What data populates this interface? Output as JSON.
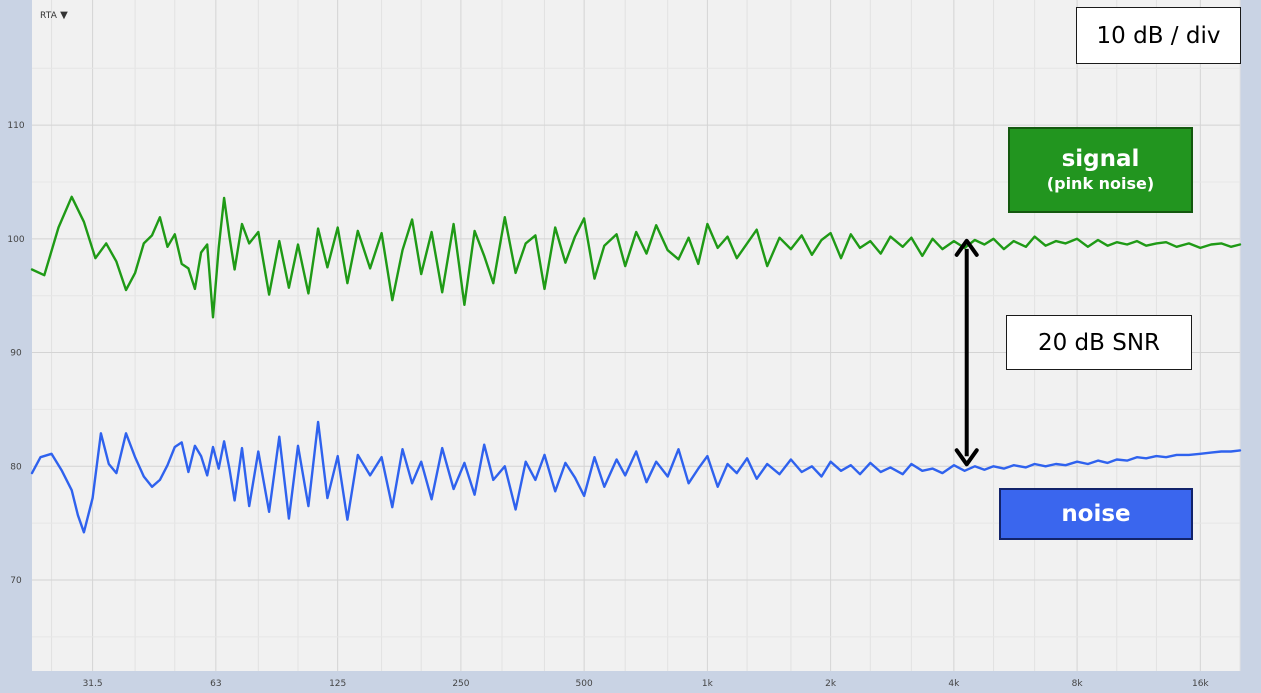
{
  "chart_data": {
    "type": "line",
    "rta_label": "RTA",
    "x_scale": "log",
    "x_unit": "Hz",
    "xlim": [
      22.4,
      20000
    ],
    "ylim": [
      62,
      121
    ],
    "grid": true,
    "x_ticks": [
      {
        "value": 31.5,
        "label": "31.5"
      },
      {
        "value": 63,
        "label": "63"
      },
      {
        "value": 125,
        "label": "125"
      },
      {
        "value": 250,
        "label": "250"
      },
      {
        "value": 500,
        "label": "500"
      },
      {
        "value": 1000,
        "label": "1k"
      },
      {
        "value": 2000,
        "label": "2k"
      },
      {
        "value": 4000,
        "label": "4k"
      },
      {
        "value": 8000,
        "label": "8k"
      },
      {
        "value": 16000,
        "label": "16k"
      }
    ],
    "y_ticks": [
      {
        "value": 110,
        "label": "110"
      },
      {
        "value": 100,
        "label": "100"
      },
      {
        "value": 90,
        "label": "90"
      },
      {
        "value": 80,
        "label": "80"
      },
      {
        "value": 70,
        "label": "70"
      }
    ],
    "series": [
      {
        "name": "signal (pink noise)",
        "color": "#1f9a16",
        "x": [
          22.4,
          24,
          26,
          28,
          30,
          32,
          34,
          36,
          38,
          40,
          42,
          44,
          46,
          48,
          50,
          52,
          54,
          56,
          58,
          60,
          62,
          64,
          66,
          68,
          70,
          73,
          76,
          80,
          85,
          90,
          95,
          100,
          106,
          112,
          118,
          125,
          132,
          140,
          150,
          160,
          170,
          180,
          190,
          200,
          212,
          225,
          240,
          255,
          270,
          285,
          300,
          320,
          340,
          360,
          380,
          400,
          425,
          450,
          475,
          500,
          530,
          560,
          600,
          630,
          670,
          710,
          750,
          800,
          850,
          900,
          950,
          1000,
          1060,
          1120,
          1180,
          1250,
          1320,
          1400,
          1500,
          1600,
          1700,
          1800,
          1900,
          2000,
          2120,
          2240,
          2360,
          2500,
          2650,
          2800,
          3000,
          3150,
          3350,
          3550,
          3750,
          4000,
          4250,
          4500,
          4750,
          5000,
          5300,
          5600,
          6000,
          6300,
          6700,
          7100,
          7500,
          8000,
          8500,
          9000,
          9500,
          10000,
          10600,
          11200,
          11800,
          12500,
          13200,
          14000,
          15000,
          16000,
          17000,
          18000,
          19000,
          20000
        ],
        "y": [
          97.3,
          96.8,
          101.0,
          103.7,
          101.5,
          98.3,
          99.6,
          98.0,
          95.5,
          97.0,
          99.6,
          100.3,
          101.9,
          99.3,
          100.4,
          97.8,
          97.4,
          95.6,
          98.8,
          99.5,
          93.1,
          99.2,
          103.6,
          100.2,
          97.3,
          101.3,
          99.6,
          100.6,
          95.1,
          99.8,
          95.7,
          99.5,
          95.2,
          100.9,
          97.5,
          101.0,
          96.1,
          100.7,
          97.4,
          100.5,
          94.6,
          99.0,
          101.7,
          96.9,
          100.6,
          95.3,
          101.3,
          94.2,
          100.7,
          98.5,
          96.1,
          101.9,
          97.0,
          99.6,
          100.3,
          95.6,
          101.0,
          97.9,
          100.2,
          101.8,
          96.5,
          99.4,
          100.4,
          97.6,
          100.6,
          98.7,
          101.2,
          99.0,
          98.2,
          100.1,
          97.8,
          101.3,
          99.2,
          100.2,
          98.3,
          99.6,
          100.8,
          97.6,
          100.1,
          99.1,
          100.3,
          98.6,
          99.9,
          100.5,
          98.3,
          100.4,
          99.2,
          99.8,
          98.7,
          100.2,
          99.3,
          100.1,
          98.5,
          100.0,
          99.1,
          99.8,
          99.2,
          99.9,
          99.5,
          100.0,
          99.1,
          99.8,
          99.3,
          100.2,
          99.4,
          99.8,
          99.6,
          100.0,
          99.3,
          99.9,
          99.4,
          99.7,
          99.5,
          99.8,
          99.4,
          99.6,
          99.7,
          99.3,
          99.6,
          99.2,
          99.5,
          99.6,
          99.3,
          99.5
        ]
      },
      {
        "name": "noise",
        "color": "#2f62ee",
        "x": [
          22.4,
          23.5,
          25,
          26.5,
          28,
          29,
          30,
          31.5,
          33,
          34.5,
          36,
          38,
          40,
          42,
          44,
          46,
          48,
          50,
          52,
          54,
          56,
          58,
          60,
          62,
          64,
          66,
          68,
          70,
          73,
          76,
          80,
          85,
          90,
          95,
          100,
          106,
          112,
          118,
          125,
          132,
          140,
          150,
          160,
          170,
          180,
          190,
          200,
          212,
          225,
          240,
          255,
          270,
          285,
          300,
          320,
          340,
          360,
          380,
          400,
          425,
          450,
          475,
          500,
          530,
          560,
          600,
          630,
          670,
          710,
          750,
          800,
          850,
          900,
          950,
          1000,
          1060,
          1120,
          1180,
          1250,
          1320,
          1400,
          1500,
          1600,
          1700,
          1800,
          1900,
          2000,
          2120,
          2240,
          2360,
          2500,
          2650,
          2800,
          3000,
          3150,
          3350,
          3550,
          3750,
          4000,
          4250,
          4500,
          4750,
          5000,
          5300,
          5600,
          6000,
          6300,
          6700,
          7100,
          7500,
          8000,
          8500,
          9000,
          9500,
          10000,
          10600,
          11200,
          11800,
          12500,
          13200,
          14000,
          15000,
          16000,
          17000,
          18000,
          19000,
          20000
        ],
        "y": [
          79.4,
          80.8,
          81.1,
          79.6,
          77.9,
          75.7,
          74.2,
          77.2,
          82.9,
          80.2,
          79.4,
          82.9,
          80.8,
          79.1,
          78.2,
          78.8,
          80.1,
          81.7,
          82.1,
          79.5,
          81.8,
          80.9,
          79.2,
          81.7,
          79.8,
          82.2,
          79.8,
          77.0,
          81.6,
          76.5,
          81.3,
          76.0,
          82.6,
          75.4,
          81.8,
          76.5,
          83.9,
          77.2,
          80.9,
          75.3,
          81.0,
          79.2,
          80.8,
          76.4,
          81.5,
          78.5,
          80.4,
          77.1,
          81.6,
          78.0,
          80.3,
          77.5,
          81.9,
          78.8,
          80.0,
          76.2,
          80.4,
          78.8,
          81.0,
          77.8,
          80.3,
          79.0,
          77.4,
          80.8,
          78.2,
          80.6,
          79.2,
          81.3,
          78.6,
          80.4,
          79.1,
          81.5,
          78.5,
          79.8,
          80.9,
          78.2,
          80.2,
          79.4,
          80.7,
          78.9,
          80.2,
          79.3,
          80.6,
          79.5,
          80.0,
          79.1,
          80.4,
          79.6,
          80.1,
          79.3,
          80.3,
          79.5,
          79.9,
          79.3,
          80.2,
          79.6,
          79.8,
          79.4,
          80.1,
          79.6,
          80.0,
          79.7,
          80.0,
          79.8,
          80.1,
          79.9,
          80.2,
          80.0,
          80.2,
          80.1,
          80.4,
          80.2,
          80.5,
          80.3,
          80.6,
          80.5,
          80.8,
          80.7,
          80.9,
          80.8,
          81.0,
          81.0,
          81.1,
          81.2,
          81.3,
          81.3,
          81.4
        ]
      }
    ]
  },
  "annotations": {
    "scale_label": "10 dB / div",
    "signal_label_line1": "signal",
    "signal_label_line2": "(pink noise)",
    "noise_label": "noise",
    "snr_label": "20 dB SNR",
    "snr_arrow": {
      "x": 4300,
      "y_top": 100,
      "y_bottom": 80,
      "color": "#000000"
    }
  }
}
